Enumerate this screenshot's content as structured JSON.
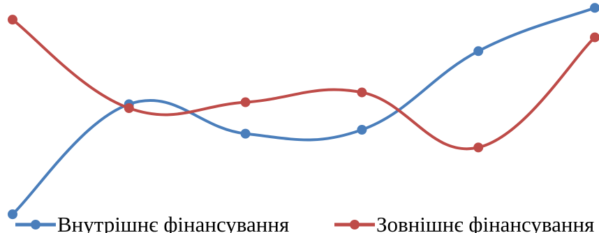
{
  "chart_data": {
    "type": "line",
    "smooth": true,
    "categories": [
      "",
      "",
      "",
      "",
      "",
      ""
    ],
    "series": [
      {
        "name": "Внутрішнє фінансування",
        "color": "#4a7ebb",
        "values": [
          0.1,
          5.7,
          4.2,
          4.4,
          8.4,
          10.6
        ]
      },
      {
        "name": "Зовнішнє фінансування",
        "color": "#be4b48",
        "values": [
          10.0,
          5.5,
          5.8,
          6.3,
          3.5,
          9.1
        ]
      }
    ],
    "ylim": [
      0,
      11
    ],
    "grid": false,
    "legend_position": "bottom",
    "marker": "circle"
  }
}
